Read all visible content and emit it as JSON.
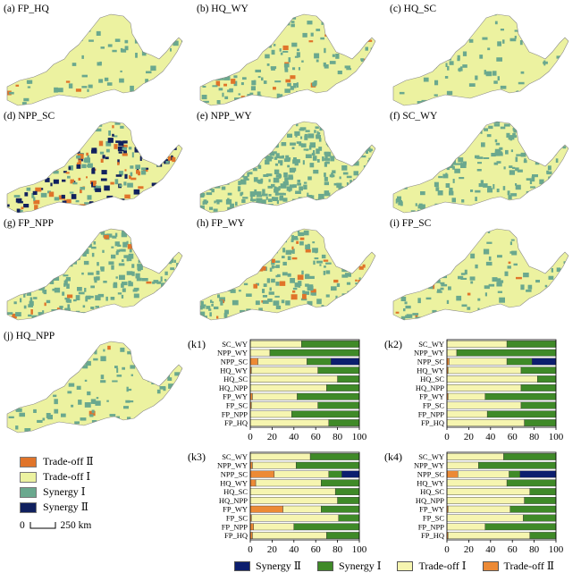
{
  "colors": {
    "tradeoff2": "#e0742a",
    "tradeoff1": "#ecf2a0",
    "synergy1": "#6aa88e",
    "synergy2": "#10205e",
    "bar_synergy1": "#3f8a28",
    "bar_synergy2": "#0c1e6e",
    "bar_tradeoff1": "#f6f5b0",
    "bar_tradeoff2": "#ec8a36",
    "boundary": "#888888"
  },
  "maps": [
    {
      "id": "a",
      "label": "(a) FP_HQ",
      "mix": {
        "tradeoff1": 0.75,
        "synergy1": 0.22,
        "tradeoff2": 0.03,
        "synergy2": 0.0
      }
    },
    {
      "id": "b",
      "label": "(b) HQ_WY",
      "mix": {
        "tradeoff1": 0.62,
        "synergy1": 0.33,
        "tradeoff2": 0.05,
        "synergy2": 0.0
      }
    },
    {
      "id": "c",
      "label": "(c) HQ_SC",
      "mix": {
        "tradeoff1": 0.82,
        "synergy1": 0.17,
        "tradeoff2": 0.01,
        "synergy2": 0.0
      }
    },
    {
      "id": "d",
      "label": "(d) NPP_SC",
      "mix": {
        "tradeoff1": 0.35,
        "synergy1": 0.22,
        "tradeoff2": 0.18,
        "synergy2": 0.25
      }
    },
    {
      "id": "e",
      "label": "(e) NPP_WY",
      "mix": {
        "tradeoff1": 0.15,
        "synergy1": 0.84,
        "tradeoff2": 0.01,
        "synergy2": 0.0
      }
    },
    {
      "id": "f",
      "label": "(f) SC_WY",
      "mix": {
        "tradeoff1": 0.55,
        "synergy1": 0.45,
        "tradeoff2": 0.0,
        "synergy2": 0.0
      }
    },
    {
      "id": "g",
      "label": "(g) FP_NPP",
      "mix": {
        "tradeoff1": 0.35,
        "synergy1": 0.63,
        "tradeoff2": 0.02,
        "synergy2": 0.0
      }
    },
    {
      "id": "h",
      "label": "(h) FP_WY",
      "mix": {
        "tradeoff1": 0.42,
        "synergy1": 0.5,
        "tradeoff2": 0.08,
        "synergy2": 0.0
      }
    },
    {
      "id": "i",
      "label": "(i) FP_SC",
      "mix": {
        "tradeoff1": 0.68,
        "synergy1": 0.29,
        "tradeoff2": 0.03,
        "synergy2": 0.0
      }
    },
    {
      "id": "j",
      "label": "(j) HQ_NPP",
      "mix": {
        "tradeoff1": 0.7,
        "synergy1": 0.29,
        "tradeoff2": 0.01,
        "synergy2": 0.0
      }
    }
  ],
  "legend": {
    "items": [
      {
        "label": "Trade-off Ⅱ",
        "color_key": "tradeoff2"
      },
      {
        "label": "Trade-off Ⅰ",
        "color_key": "tradeoff1"
      },
      {
        "label": "Synergy Ⅰ",
        "color_key": "synergy1"
      },
      {
        "label": "Synergy Ⅱ",
        "color_key": "synergy2"
      }
    ],
    "scale_start": "0",
    "scale_label": "250 km"
  },
  "chart_data": [
    {
      "panel": "(k1)",
      "type": "bar",
      "orientation": "horizontal",
      "stacked": true,
      "categories": [
        "SC_WY",
        "NPP_WY",
        "NPP_SC",
        "HQ_WY",
        "HQ_SC",
        "HQ_NPP",
        "FP_WY",
        "FP_SC",
        "FP_NPP",
        "FP_HQ"
      ],
      "series": [
        {
          "name": "Trade-off Ⅱ",
          "values": [
            0,
            0,
            7,
            1,
            0,
            0,
            2,
            1,
            0,
            0
          ]
        },
        {
          "name": "Trade-off Ⅰ",
          "values": [
            47,
            18,
            45,
            61,
            80,
            70,
            41,
            61,
            38,
            72
          ]
        },
        {
          "name": "Synergy Ⅰ",
          "values": [
            53,
            82,
            22,
            38,
            20,
            30,
            57,
            38,
            62,
            28
          ]
        },
        {
          "name": "Synergy Ⅱ",
          "values": [
            0,
            0,
            26,
            0,
            0,
            0,
            0,
            0,
            0,
            0
          ]
        }
      ],
      "xticks": [
        0,
        20,
        40,
        60,
        80,
        100
      ],
      "xlim": [
        0,
        100
      ]
    },
    {
      "panel": "(k2)",
      "type": "bar",
      "orientation": "horizontal",
      "stacked": true,
      "categories": [
        "SC_WY",
        "NPP_WY",
        "NPP_SC",
        "HQ_WY",
        "HQ_SC",
        "HQ_NPP",
        "FP_WY",
        "FP_SC",
        "FP_NPP",
        "FP_HQ"
      ],
      "series": [
        {
          "name": "Trade-off Ⅱ",
          "values": [
            0,
            0,
            2,
            1,
            0,
            0,
            1,
            0,
            0,
            0
          ]
        },
        {
          "name": "Trade-off Ⅰ",
          "values": [
            55,
            9,
            53,
            67,
            83,
            68,
            34,
            68,
            37,
            71
          ]
        },
        {
          "name": "Synergy Ⅰ",
          "values": [
            45,
            91,
            23,
            32,
            17,
            32,
            65,
            32,
            63,
            29
          ]
        },
        {
          "name": "Synergy Ⅱ",
          "values": [
            0,
            0,
            22,
            0,
            0,
            0,
            0,
            0,
            0,
            0
          ]
        }
      ],
      "xticks": [
        0,
        20,
        40,
        60,
        80,
        100
      ],
      "xlim": [
        0,
        100
      ]
    },
    {
      "panel": "(k3)",
      "type": "bar",
      "orientation": "horizontal",
      "stacked": true,
      "categories": [
        "SC_WY",
        "NPP_WY",
        "NPP_SC",
        "HQ_WY",
        "HQ_SC",
        "HQ_NPP",
        "FP_WY",
        "FP_SC",
        "FP_NPP",
        "FP_HQ"
      ],
      "series": [
        {
          "name": "Trade-off Ⅱ",
          "values": [
            0,
            2,
            22,
            5,
            0,
            0,
            30,
            1,
            3,
            2
          ]
        },
        {
          "name": "Trade-off Ⅰ",
          "values": [
            55,
            40,
            50,
            60,
            78,
            80,
            35,
            80,
            37,
            68
          ]
        },
        {
          "name": "Synergy Ⅰ",
          "values": [
            45,
            58,
            12,
            35,
            22,
            20,
            35,
            19,
            60,
            30
          ]
        },
        {
          "name": "Synergy Ⅱ",
          "values": [
            0,
            0,
            16,
            0,
            0,
            0,
            0,
            0,
            0,
            0
          ]
        }
      ],
      "xticks": [
        0,
        20,
        40,
        60,
        80,
        100
      ],
      "xlim": [
        0,
        100
      ]
    },
    {
      "panel": "(k4)",
      "type": "bar",
      "orientation": "horizontal",
      "stacked": true,
      "categories": [
        "SC_WY",
        "NPP_WY",
        "NPP_SC",
        "HQ_WY",
        "HQ_SC",
        "HQ_NPP",
        "FP_WY",
        "FP_SC",
        "FP_NPP",
        "FP_HQ"
      ],
      "series": [
        {
          "name": "Trade-off Ⅱ",
          "values": [
            0,
            0,
            10,
            0,
            0,
            0,
            1,
            0,
            0,
            1
          ]
        },
        {
          "name": "Trade-off Ⅰ",
          "values": [
            52,
            29,
            47,
            55,
            76,
            71,
            57,
            70,
            35,
            75
          ]
        },
        {
          "name": "Synergy Ⅰ",
          "values": [
            48,
            71,
            10,
            45,
            24,
            29,
            42,
            30,
            65,
            24
          ]
        },
        {
          "name": "Synergy Ⅱ",
          "values": [
            0,
            0,
            33,
            0,
            0,
            0,
            0,
            0,
            0,
            0
          ]
        }
      ],
      "xticks": [
        0,
        20,
        40,
        60,
        80,
        100
      ],
      "xlim": [
        0,
        100
      ]
    }
  ],
  "bottom_legend": [
    {
      "label": "Synergy Ⅱ",
      "color_key": "bar_synergy2"
    },
    {
      "label": "Synergy Ⅰ",
      "color_key": "bar_synergy1"
    },
    {
      "label": "Trade-off Ⅰ",
      "color_key": "bar_tradeoff1"
    },
    {
      "label": "Trade-off Ⅱ",
      "color_key": "bar_tradeoff2"
    }
  ]
}
